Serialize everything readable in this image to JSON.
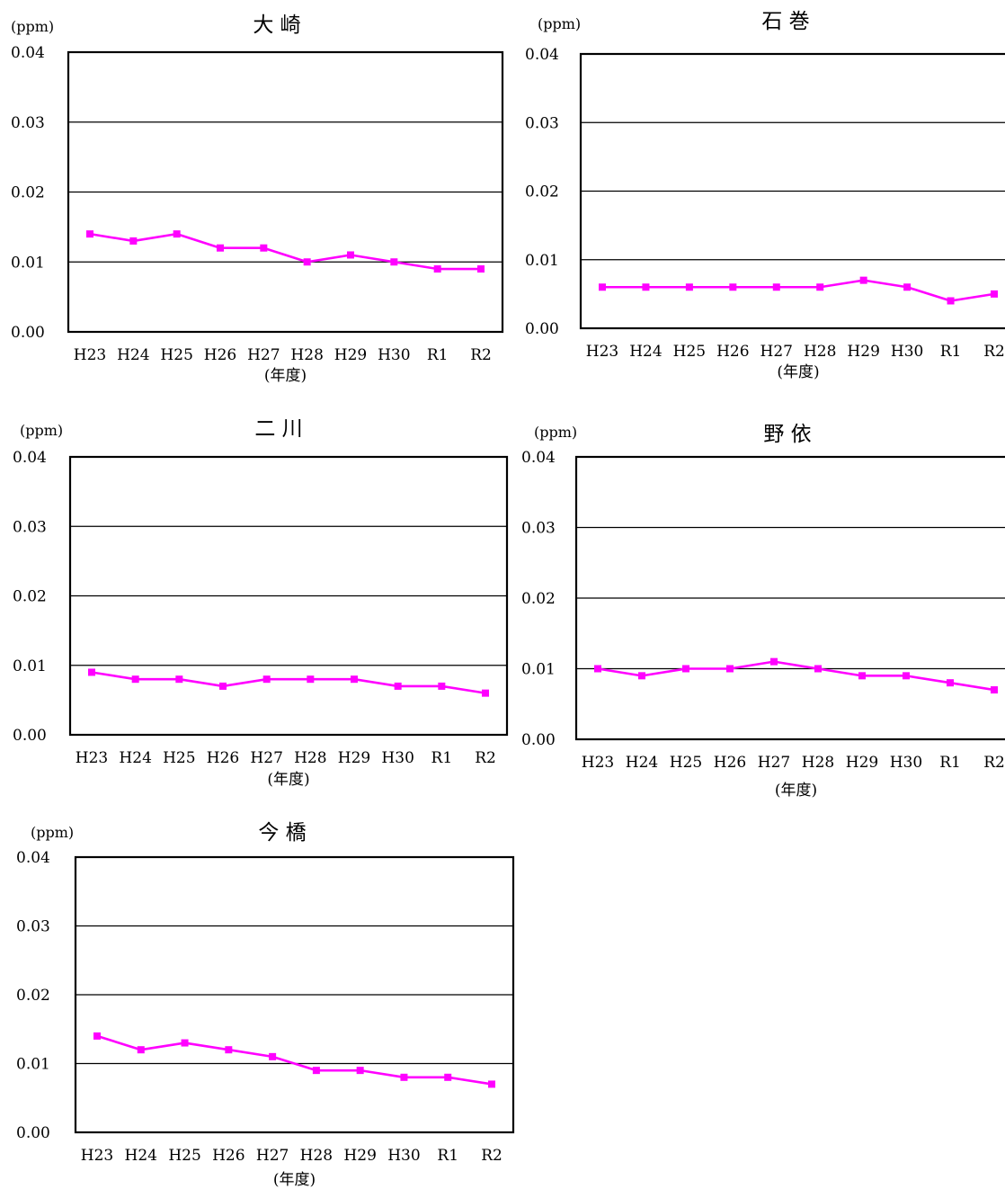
{
  "chart_data": [
    {
      "type": "line",
      "title": "大 崎",
      "unit": "(ppm)",
      "xlabel": "(年度)",
      "ylim": [
        0,
        0.04
      ],
      "yticks": [
        "0.00",
        "0.01",
        "0.02",
        "0.03",
        "0.04"
      ],
      "categories": [
        "H23",
        "H24",
        "H25",
        "H26",
        "H27",
        "H28",
        "H29",
        "H30",
        "R1",
        "R2"
      ],
      "series": [
        {
          "values": [
            0.014,
            0.013,
            0.014,
            0.012,
            0.012,
            0.01,
            0.011,
            0.01,
            0.009,
            0.009
          ],
          "color": "#ff00ff"
        }
      ],
      "grid": true
    },
    {
      "type": "line",
      "title": "石 巻",
      "unit": "(ppm)",
      "xlabel": "(年度)",
      "ylim": [
        0,
        0.04
      ],
      "yticks": [
        "0.00",
        "0.01",
        "0.02",
        "0.03",
        "0.04"
      ],
      "categories": [
        "H23",
        "H24",
        "H25",
        "H26",
        "H27",
        "H28",
        "H29",
        "H30",
        "R1",
        "R2"
      ],
      "series": [
        {
          "values": [
            0.006,
            0.006,
            0.006,
            0.006,
            0.006,
            0.006,
            0.007,
            0.006,
            0.004,
            0.005
          ],
          "color": "#ff00ff"
        }
      ],
      "grid": true
    },
    {
      "type": "line",
      "title": "二 川",
      "unit": "(ppm)",
      "xlabel": "(年度)",
      "ylim": [
        0,
        0.04
      ],
      "yticks": [
        "0.00",
        "0.01",
        "0.02",
        "0.03",
        "0.04"
      ],
      "categories": [
        "H23",
        "H24",
        "H25",
        "H26",
        "H27",
        "H28",
        "H29",
        "H30",
        "R1",
        "R2"
      ],
      "series": [
        {
          "values": [
            0.009,
            0.008,
            0.008,
            0.007,
            0.008,
            0.008,
            0.008,
            0.007,
            0.007,
            0.006
          ],
          "color": "#ff00ff"
        }
      ],
      "grid": true
    },
    {
      "type": "line",
      "title": "野 依",
      "unit": "(ppm)",
      "xlabel": "(年度)",
      "ylim": [
        0,
        0.04
      ],
      "yticks": [
        "0.00",
        "0.01",
        "0.02",
        "0.03",
        "0.04"
      ],
      "categories": [
        "H23",
        "H24",
        "H25",
        "H26",
        "H27",
        "H28",
        "H29",
        "H30",
        "R1",
        "R2"
      ],
      "series": [
        {
          "values": [
            0.01,
            0.009,
            0.01,
            0.01,
            0.011,
            0.01,
            0.009,
            0.009,
            0.008,
            0.007
          ],
          "color": "#ff00ff"
        }
      ],
      "grid": true
    },
    {
      "type": "line",
      "title": "今 橋",
      "unit": "(ppm)",
      "xlabel": "(年度)",
      "ylim": [
        0,
        0.04
      ],
      "yticks": [
        "0.00",
        "0.01",
        "0.02",
        "0.03",
        "0.04"
      ],
      "categories": [
        "H23",
        "H24",
        "H25",
        "H26",
        "H27",
        "H28",
        "H29",
        "H30",
        "R1",
        "R2"
      ],
      "series": [
        {
          "values": [
            0.014,
            0.012,
            0.013,
            0.012,
            0.011,
            0.009,
            0.009,
            0.008,
            0.008,
            0.007
          ],
          "color": "#ff00ff"
        }
      ],
      "grid": true
    }
  ]
}
